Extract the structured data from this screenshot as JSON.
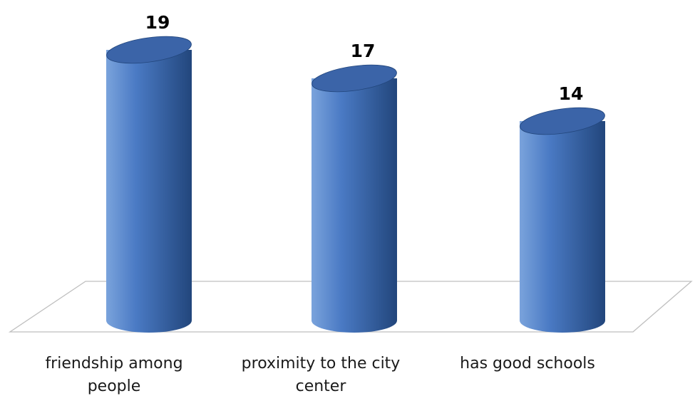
{
  "chart_data": {
    "type": "bar",
    "style": "3d-cylinder",
    "title": "",
    "xlabel": "",
    "ylabel": "",
    "categories": [
      "friendship among people",
      "proximity to the city center",
      "has good schools"
    ],
    "values": [
      19,
      17,
      14
    ],
    "data_labels": [
      "19",
      "17",
      "14"
    ],
    "ylim": [
      0,
      20
    ],
    "grid": false,
    "legend": "none",
    "colors": {
      "bar_light": "#7aa3dc",
      "bar_mid": "#4a7ac4",
      "bar_dark": "#22467c",
      "bar_top": "#3b64a8",
      "floor_line": "#bfbfbf"
    }
  }
}
